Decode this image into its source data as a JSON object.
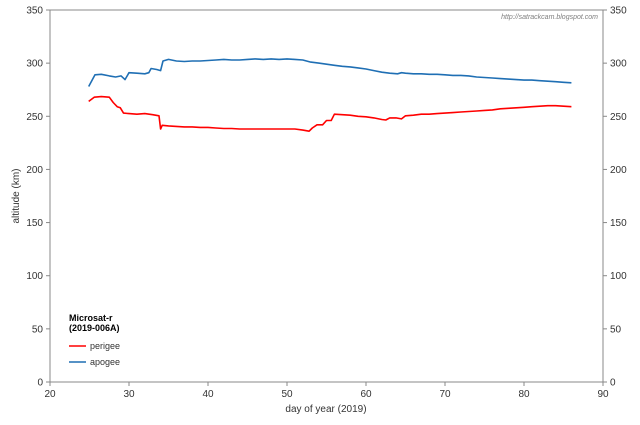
{
  "chart_data": {
    "type": "line",
    "title": "",
    "xlabel": "day of year (2019)",
    "ylabel": "altitude (km)",
    "xlim": [
      20,
      90
    ],
    "ylim": [
      0,
      350
    ],
    "xticks": [
      20,
      30,
      40,
      50,
      60,
      70,
      80,
      90
    ],
    "yticks": [
      0,
      50,
      100,
      150,
      200,
      250,
      300,
      350
    ],
    "legend_title_line1": "Microsat-r",
    "legend_title_line2": "(2019-006A)",
    "legend_position": "bottom-left",
    "watermark": "http://satrackcam.blogspot.com",
    "grid": false,
    "series": [
      {
        "name": "perigee",
        "color": "#ff0000",
        "points": [
          [
            24.9,
            264
          ],
          [
            25.6,
            268
          ],
          [
            26.5,
            268.5
          ],
          [
            27.5,
            268
          ],
          [
            28.0,
            263
          ],
          [
            28.5,
            259
          ],
          [
            28.9,
            258
          ],
          [
            29.3,
            253
          ],
          [
            30.0,
            252.5
          ],
          [
            31.0,
            252
          ],
          [
            32.0,
            252.5
          ],
          [
            33.0,
            251.5
          ],
          [
            33.8,
            250.5
          ],
          [
            34.0,
            238
          ],
          [
            34.2,
            241.5
          ],
          [
            35.0,
            241
          ],
          [
            36.0,
            240.5
          ],
          [
            37.0,
            240
          ],
          [
            38.0,
            240
          ],
          [
            39.0,
            239.5
          ],
          [
            40.0,
            239.5
          ],
          [
            41.0,
            239
          ],
          [
            42.0,
            238.5
          ],
          [
            43.0,
            238.5
          ],
          [
            44.0,
            238
          ],
          [
            45.0,
            238
          ],
          [
            46.0,
            238
          ],
          [
            47.0,
            238
          ],
          [
            48.0,
            238
          ],
          [
            49.0,
            238
          ],
          [
            50.0,
            238
          ],
          [
            51.0,
            238
          ],
          [
            52.0,
            237
          ],
          [
            52.8,
            236
          ],
          [
            53.2,
            239
          ],
          [
            53.8,
            242
          ],
          [
            54.5,
            242
          ],
          [
            55.0,
            246
          ],
          [
            55.6,
            246
          ],
          [
            56.0,
            252
          ],
          [
            57.0,
            251.5
          ],
          [
            58.0,
            251
          ],
          [
            59.0,
            250
          ],
          [
            60.0,
            249.5
          ],
          [
            61.0,
            248.5
          ],
          [
            62.0,
            247
          ],
          [
            62.5,
            246.5
          ],
          [
            63.0,
            248.5
          ],
          [
            63.8,
            248.5
          ],
          [
            64.5,
            247.5
          ],
          [
            65.0,
            250.5
          ],
          [
            66.0,
            251
          ],
          [
            67.0,
            252
          ],
          [
            68.0,
            252
          ],
          [
            69.0,
            252.5
          ],
          [
            70.0,
            253
          ],
          [
            71.0,
            253.5
          ],
          [
            72.0,
            254
          ],
          [
            73.0,
            254.5
          ],
          [
            74.0,
            255
          ],
          [
            75.0,
            255.5
          ],
          [
            76.0,
            256
          ],
          [
            77.0,
            257
          ],
          [
            78.0,
            257.5
          ],
          [
            79.0,
            258
          ],
          [
            80.0,
            258.5
          ],
          [
            81.0,
            259
          ],
          [
            82.0,
            259.5
          ],
          [
            83.0,
            260
          ],
          [
            84.0,
            260
          ],
          [
            85.0,
            259.5
          ],
          [
            86.0,
            259
          ]
        ]
      },
      {
        "name": "apogee",
        "color": "#1f6fb4",
        "points": [
          [
            24.9,
            278
          ],
          [
            25.7,
            289
          ],
          [
            26.5,
            289.5
          ],
          [
            27.5,
            288
          ],
          [
            28.3,
            287
          ],
          [
            29.0,
            288
          ],
          [
            29.5,
            284.5
          ],
          [
            30.0,
            291
          ],
          [
            31.0,
            290.5
          ],
          [
            32.0,
            290
          ],
          [
            32.5,
            291
          ],
          [
            32.8,
            295
          ],
          [
            33.5,
            294
          ],
          [
            34.0,
            293
          ],
          [
            34.3,
            302
          ],
          [
            35.0,
            303.5
          ],
          [
            36.0,
            302
          ],
          [
            37.0,
            301.5
          ],
          [
            38.0,
            302
          ],
          [
            39.0,
            302
          ],
          [
            40.0,
            302.5
          ],
          [
            41.0,
            303
          ],
          [
            42.0,
            303.5
          ],
          [
            43.0,
            303
          ],
          [
            44.0,
            303
          ],
          [
            45.0,
            303.5
          ],
          [
            46.0,
            304
          ],
          [
            47.0,
            303.5
          ],
          [
            48.0,
            304
          ],
          [
            49.0,
            303.5
          ],
          [
            50.0,
            304
          ],
          [
            51.0,
            303.5
          ],
          [
            52.0,
            303
          ],
          [
            53.0,
            301
          ],
          [
            54.0,
            300
          ],
          [
            55.0,
            299
          ],
          [
            56.0,
            298
          ],
          [
            57.0,
            297
          ],
          [
            58.0,
            296.5
          ],
          [
            59.0,
            295.5
          ],
          [
            60.0,
            294.5
          ],
          [
            61.0,
            293
          ],
          [
            62.0,
            291.5
          ],
          [
            63.0,
            290.5
          ],
          [
            64.0,
            290
          ],
          [
            64.5,
            291
          ],
          [
            65.0,
            290.5
          ],
          [
            66.0,
            290
          ],
          [
            67.0,
            290
          ],
          [
            68.0,
            289.5
          ],
          [
            69.0,
            289.5
          ],
          [
            70.0,
            289
          ],
          [
            71.0,
            288.5
          ],
          [
            72.0,
            288.5
          ],
          [
            73.0,
            288
          ],
          [
            74.0,
            287
          ],
          [
            75.0,
            286.5
          ],
          [
            76.0,
            286
          ],
          [
            77.0,
            285.5
          ],
          [
            78.0,
            285
          ],
          [
            79.0,
            284.5
          ],
          [
            80.0,
            284
          ],
          [
            81.0,
            284
          ],
          [
            82.0,
            283.5
          ],
          [
            83.0,
            283
          ],
          [
            84.0,
            282.5
          ],
          [
            85.0,
            282
          ],
          [
            86.0,
            281.5
          ]
        ]
      }
    ]
  }
}
